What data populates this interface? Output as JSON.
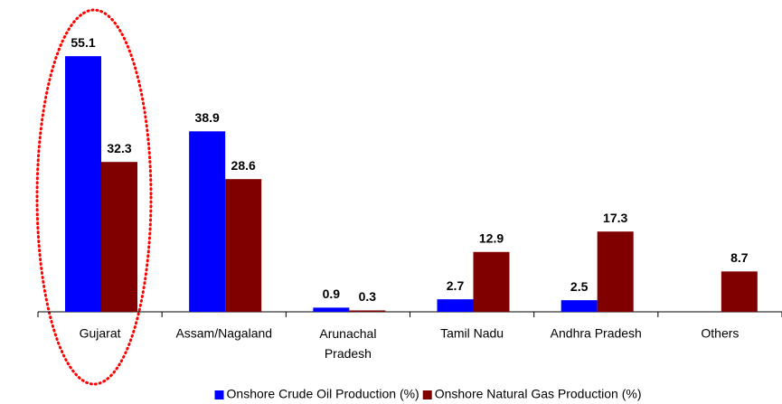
{
  "chart_data": {
    "type": "bar",
    "categories": [
      "Gujarat",
      "Assam/Nagaland",
      "Arunachal Pradesh",
      "Tamil Nadu",
      "Andhra Pradesh",
      "Others"
    ],
    "series": [
      {
        "name": "Onshore Crude Oil Production (%)",
        "color": "#0000ff",
        "values": [
          55.1,
          38.9,
          0.9,
          2.7,
          2.5,
          null
        ]
      },
      {
        "name": "Onshore Natural Gas Production (%)",
        "color": "#800000",
        "values": [
          32.3,
          28.6,
          0.3,
          12.9,
          17.3,
          8.7
        ]
      }
    ],
    "ylim": [
      0,
      60
    ],
    "legend": "bottom"
  }
}
